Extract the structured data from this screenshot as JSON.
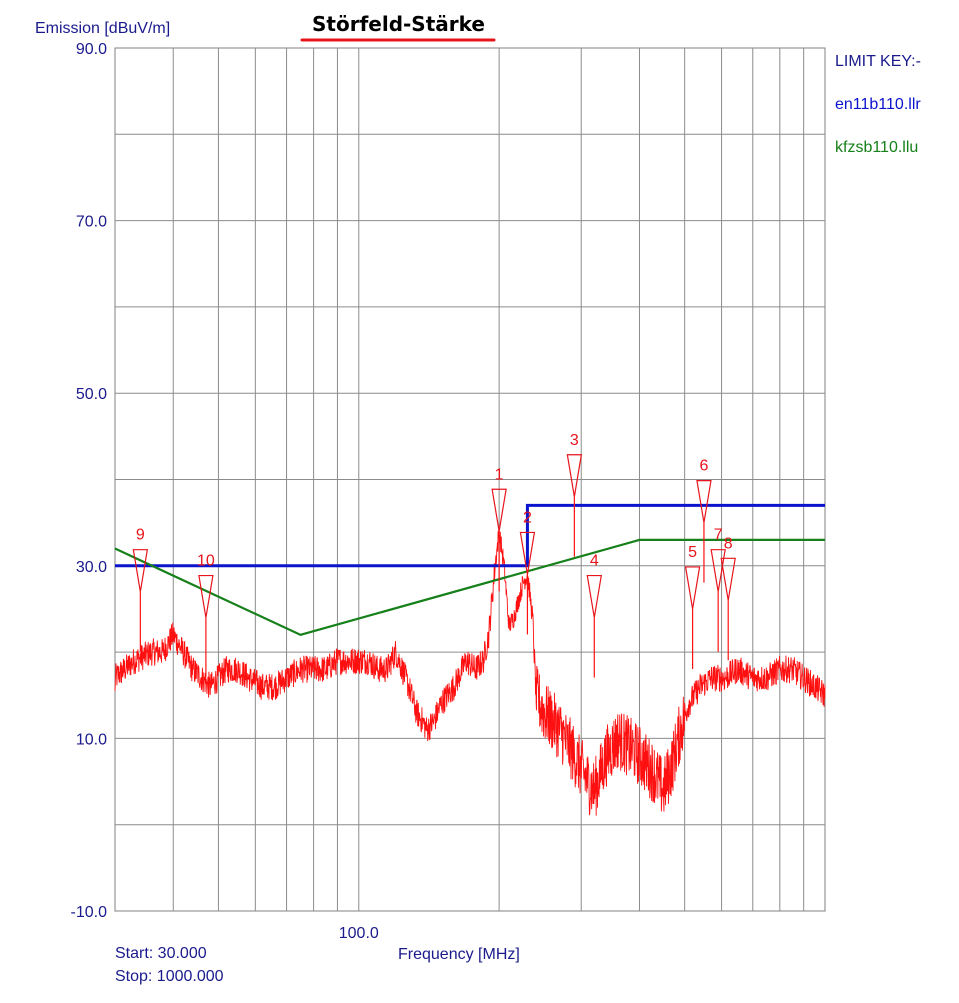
{
  "chart_data": {
    "type": "line",
    "title": "Störfeld-Stärke",
    "ylabel": "Emission [dBuV/m]",
    "xlabel": "Frequency [MHz]",
    "xscale": "log",
    "xlim": [
      30,
      1000
    ],
    "ylim": [
      -10,
      90
    ],
    "yticks": [
      {
        "value": 90,
        "label": "90.0"
      },
      {
        "value": 70,
        "label": "70.0"
      },
      {
        "value": 50,
        "label": "50.0"
      },
      {
        "value": 30,
        "label": "30.0"
      },
      {
        "value": 10,
        "label": "10.0"
      },
      {
        "value": -10,
        "label": "-10.0"
      }
    ],
    "xticks": [
      {
        "value": 100,
        "label": "100.0"
      }
    ],
    "grid": true,
    "start_text": "Start: 30.000",
    "stop_text": "Stop: 1000.000",
    "legend": {
      "placement": "right",
      "header": "LIMIT KEY:-",
      "items": [
        {
          "name": "en11b110.llr",
          "color": "#0a14cc"
        },
        {
          "name": "kfzsb110.llu",
          "color": "#16801a"
        }
      ]
    },
    "limit_lines": [
      {
        "name": "en11b110.llr",
        "color": "#0a14cc",
        "points": [
          [
            30,
            30
          ],
          [
            230,
            30
          ],
          [
            230,
            37
          ],
          [
            1000,
            37
          ]
        ]
      },
      {
        "name": "kfzsb110.llu",
        "color": "#16801a",
        "points": [
          [
            30,
            32
          ],
          [
            75,
            22
          ],
          [
            400,
            33
          ],
          [
            1000,
            33
          ]
        ]
      }
    ],
    "emission_envelope": {
      "color": "#ff1010",
      "points": [
        [
          30,
          17
        ],
        [
          33,
          19
        ],
        [
          36,
          20
        ],
        [
          38,
          20
        ],
        [
          40,
          22
        ],
        [
          42,
          20
        ],
        [
          44,
          18
        ],
        [
          46,
          17
        ],
        [
          48,
          16
        ],
        [
          50,
          17
        ],
        [
          52,
          18
        ],
        [
          55,
          18
        ],
        [
          58,
          17
        ],
        [
          62,
          16
        ],
        [
          66,
          16
        ],
        [
          70,
          17
        ],
        [
          75,
          18
        ],
        [
          80,
          18
        ],
        [
          85,
          18
        ],
        [
          90,
          19
        ],
        [
          95,
          19
        ],
        [
          100,
          19
        ],
        [
          105,
          19
        ],
        [
          110,
          18
        ],
        [
          115,
          18
        ],
        [
          120,
          20
        ],
        [
          124,
          18
        ],
        [
          128,
          16
        ],
        [
          133,
          13
        ],
        [
          137,
          12
        ],
        [
          140,
          11
        ],
        [
          145,
          12
        ],
        [
          150,
          14
        ],
        [
          160,
          16
        ],
        [
          170,
          19
        ],
        [
          178,
          18
        ],
        [
          185,
          19
        ],
        [
          190,
          22
        ],
        [
          196,
          30
        ],
        [
          200,
          34
        ],
        [
          205,
          30
        ],
        [
          210,
          23
        ],
        [
          215,
          24
        ],
        [
          220,
          26
        ],
        [
          225,
          28
        ],
        [
          230,
          29
        ],
        [
          236,
          24
        ],
        [
          240,
          15
        ],
        [
          250,
          13
        ],
        [
          260,
          12
        ],
        [
          270,
          11
        ],
        [
          290,
          8
        ],
        [
          310,
          5
        ],
        [
          320,
          4
        ],
        [
          330,
          6
        ],
        [
          340,
          8
        ],
        [
          350,
          9
        ],
        [
          360,
          10
        ],
        [
          380,
          9
        ],
        [
          400,
          8
        ],
        [
          430,
          6
        ],
        [
          450,
          4
        ],
        [
          470,
          7
        ],
        [
          490,
          11
        ],
        [
          510,
          14
        ],
        [
          540,
          16
        ],
        [
          570,
          17
        ],
        [
          610,
          17
        ],
        [
          650,
          18
        ],
        [
          700,
          17
        ],
        [
          750,
          17
        ],
        [
          800,
          18
        ],
        [
          850,
          18
        ],
        [
          900,
          17
        ],
        [
          950,
          16
        ],
        [
          1000,
          15
        ]
      ]
    },
    "markers": [
      {
        "label": "1",
        "freq": 200,
        "level": 34
      },
      {
        "label": "2",
        "freq": 230,
        "level": 29
      },
      {
        "label": "3",
        "freq": 290,
        "level": 38
      },
      {
        "label": "4",
        "freq": 320,
        "level": 24
      },
      {
        "label": "5",
        "freq": 520,
        "level": 25
      },
      {
        "label": "6",
        "freq": 550,
        "level": 35
      },
      {
        "label": "7",
        "freq": 590,
        "level": 27
      },
      {
        "label": "8",
        "freq": 620,
        "level": 26
      },
      {
        "label": "9",
        "freq": 34,
        "level": 27
      },
      {
        "label": "10",
        "freq": 47,
        "level": 24
      }
    ]
  }
}
